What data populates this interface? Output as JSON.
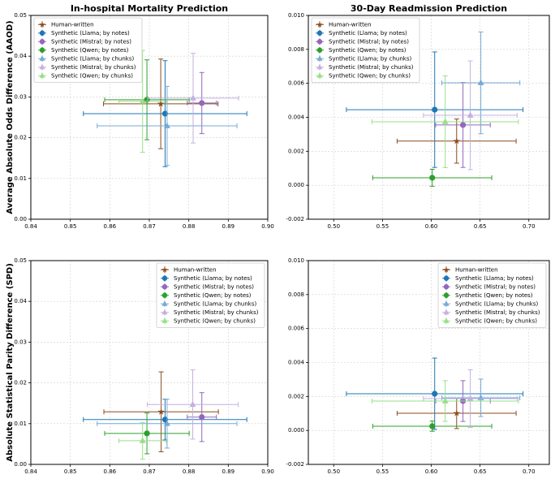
{
  "chart_data": [
    {
      "type": "scatter",
      "title": "In-hospital Mortality Prediction",
      "ylabel": "Average Absolute Odds Difference (AAOD)",
      "xlim": [
        0.84,
        0.9
      ],
      "ylim": [
        0,
        0.05
      ],
      "xticks": [
        0.84,
        0.85,
        0.86,
        0.87,
        0.88,
        0.89,
        {
          "value": 0.9,
          "label": "0.90"
        }
      ],
      "yticks": [
        {
          "value": 0,
          "label": "0.00"
        },
        0.01,
        0.02,
        0.03,
        0.04,
        0.05
      ],
      "grid": true,
      "legend": "upper left",
      "series": [
        {
          "name": "Human-written",
          "color": "#8c4a1e",
          "marker": "star",
          "x": [
            0.8729
          ],
          "values": [
            0.0283
          ],
          "xerr": [
            0.0145
          ],
          "yerr": [
            0.011
          ]
        },
        {
          "name": "Synthetic (Llama; by notes)",
          "color": "#1f77b4",
          "marker": "circle",
          "x": [
            0.874
          ],
          "values": [
            0.0259
          ],
          "xerr": [
            0.0207
          ],
          "yerr": [
            0.013
          ]
        },
        {
          "name": "Synthetic (Mistral; by notes)",
          "color": "#9467bd",
          "marker": "circle",
          "x": [
            0.8833
          ],
          "values": [
            0.0285
          ],
          "xerr": [
            0.0037
          ],
          "yerr": [
            0.0075
          ]
        },
        {
          "name": "Synthetic (Qwen; by notes)",
          "color": "#2ca02c",
          "marker": "circle",
          "x": [
            0.8694
          ],
          "values": [
            0.0293
          ],
          "xerr": [
            0.0107
          ],
          "yerr": [
            0.0098
          ]
        },
        {
          "name": "Synthetic (Llama; by chunks)",
          "color": "#74aad6",
          "marker": "triangle",
          "x": [
            0.8745
          ],
          "values": [
            0.0229
          ],
          "xerr": [
            0.0177
          ],
          "yerr": [
            0.0097
          ]
        },
        {
          "name": "Synthetic (Mistral; by chunks)",
          "color": "#c5b0e0",
          "marker": "triangle",
          "x": [
            0.8811
          ],
          "values": [
            0.0297
          ],
          "xerr": [
            0.0115
          ],
          "yerr": [
            0.011
          ]
        },
        {
          "name": "Synthetic (Qwen; by chunks)",
          "color": "#98df8a",
          "marker": "triangle",
          "x": [
            0.8683
          ],
          "values": [
            0.0289
          ],
          "xerr": [
            0.006
          ],
          "yerr": [
            0.0125
          ]
        }
      ]
    },
    {
      "type": "scatter",
      "title": "30-Day Readmission Prediction",
      "xlim": [
        0.474,
        0.721
      ],
      "ylim": [
        -0.002,
        0.01
      ],
      "xticks": [
        {
          "value": 0.5,
          "label": "0.50"
        },
        0.55,
        {
          "value": 0.6,
          "label": "0.60"
        },
        0.65,
        {
          "value": 0.7,
          "label": "0.70"
        }
      ],
      "yticks": [
        -0.002,
        {
          "value": 0,
          "label": "0.000"
        },
        0.002,
        0.004,
        0.006,
        0.008,
        {
          "value": 0.01,
          "label": "0.010"
        }
      ],
      "grid": true,
      "legend": "upper left",
      "series": [
        {
          "name": "Human-written",
          "color": "#8c4a1e",
          "marker": "star",
          "x": [
            0.626
          ],
          "values": [
            0.0026
          ],
          "xerr": [
            0.061
          ],
          "yerr": [
            0.0013
          ]
        },
        {
          "name": "Synthetic (Llama; by notes)",
          "color": "#1f77b4",
          "marker": "circle",
          "x": [
            0.6035
          ],
          "values": [
            0.00445
          ],
          "xerr": [
            0.0905
          ],
          "yerr": [
            0.0034
          ]
        },
        {
          "name": "Synthetic (Mistral; by notes)",
          "color": "#9467bd",
          "marker": "circle",
          "x": [
            0.6325
          ],
          "values": [
            0.00355
          ],
          "xerr": [
            0.028
          ],
          "yerr": [
            0.0025
          ]
        },
        {
          "name": "Synthetic (Qwen; by notes)",
          "color": "#2ca02c",
          "marker": "circle",
          "x": [
            0.601
          ],
          "values": [
            0.00044
          ],
          "xerr": [
            0.061
          ],
          "yerr": [
            0.0005
          ]
        },
        {
          "name": "Synthetic (Llama; by chunks)",
          "color": "#74aad6",
          "marker": "triangle",
          "x": [
            0.6508
          ],
          "values": [
            0.00603
          ],
          "xerr": [
            0.04
          ],
          "yerr": [
            0.003
          ]
        },
        {
          "name": "Synthetic (Mistral; by chunks)",
          "color": "#c5b0e0",
          "marker": "triangle",
          "x": [
            0.64
          ],
          "values": [
            0.00412
          ],
          "xerr": [
            0.048
          ],
          "yerr": [
            0.0032
          ]
        },
        {
          "name": "Synthetic (Qwen; by chunks)",
          "color": "#98df8a",
          "marker": "triangle",
          "x": [
            0.6143
          ],
          "values": [
            0.00374
          ],
          "xerr": [
            0.075
          ],
          "yerr": [
            0.0027
          ]
        }
      ]
    },
    {
      "type": "scatter",
      "ylabel": "Absolute Statistical Parity Difference (SPD)",
      "xlim": [
        0.84,
        0.9
      ],
      "ylim": [
        0,
        0.05
      ],
      "xticks": [
        0.84,
        0.85,
        0.86,
        0.87,
        0.88,
        0.89,
        {
          "value": 0.9,
          "label": "0.90"
        }
      ],
      "yticks": [
        {
          "value": 0,
          "label": "0.00"
        },
        0.01,
        0.02,
        0.03,
        0.04,
        0.05
      ],
      "grid": true,
      "legend": "upper right",
      "series": [
        {
          "name": "Human-written",
          "color": "#8c4a1e",
          "marker": "star",
          "x": [
            0.873
          ],
          "values": [
            0.0129
          ],
          "xerr": [
            0.0145
          ],
          "yerr": [
            0.0098
          ]
        },
        {
          "name": "Synthetic (Llama; by notes)",
          "color": "#1f77b4",
          "marker": "circle",
          "x": [
            0.874
          ],
          "values": [
            0.011
          ],
          "xerr": [
            0.0207
          ],
          "yerr": [
            0.005
          ]
        },
        {
          "name": "Synthetic (Mistral; by notes)",
          "color": "#9467bd",
          "marker": "circle",
          "x": [
            0.8833
          ],
          "values": [
            0.0116
          ],
          "xerr": [
            0.0037
          ],
          "yerr": [
            0.006
          ]
        },
        {
          "name": "Synthetic (Qwen; by notes)",
          "color": "#2ca02c",
          "marker": "circle",
          "x": [
            0.8694
          ],
          "values": [
            0.0076
          ],
          "xerr": [
            0.0107
          ],
          "yerr": [
            0.005
          ]
        },
        {
          "name": "Synthetic (Llama; by chunks)",
          "color": "#74aad6",
          "marker": "triangle",
          "x": [
            0.8745
          ],
          "values": [
            0.01
          ],
          "xerr": [
            0.0177
          ],
          "yerr": [
            0.006
          ]
        },
        {
          "name": "Synthetic (Mistral; by chunks)",
          "color": "#c5b0e0",
          "marker": "triangle",
          "x": [
            0.881
          ],
          "values": [
            0.0147
          ],
          "xerr": [
            0.0115
          ],
          "yerr": [
            0.0085
          ]
        },
        {
          "name": "Synthetic (Qwen; by chunks)",
          "color": "#98df8a",
          "marker": "triangle",
          "x": [
            0.8683
          ],
          "values": [
            0.0058
          ],
          "xerr": [
            0.006
          ],
          "yerr": [
            0.0045
          ]
        }
      ]
    },
    {
      "type": "scatter",
      "xlim": [
        0.474,
        0.721
      ],
      "ylim": [
        -0.002,
        0.01
      ],
      "xticks": [
        {
          "value": 0.5,
          "label": "0.50"
        },
        0.55,
        {
          "value": 0.6,
          "label": "0.60"
        },
        0.65,
        {
          "value": 0.7,
          "label": "0.70"
        }
      ],
      "yticks": [
        -0.002,
        {
          "value": 0,
          "label": "0.000"
        },
        0.002,
        0.004,
        0.006,
        0.008,
        {
          "value": 0.01,
          "label": "0.010"
        }
      ],
      "grid": true,
      "legend": "upper right",
      "series": [
        {
          "name": "Human-written",
          "color": "#8c4a1e",
          "marker": "star",
          "x": [
            0.626
          ],
          "values": [
            0.00101
          ],
          "xerr": [
            0.061
          ],
          "yerr": [
            0.0009
          ]
        },
        {
          "name": "Synthetic (Llama; by notes)",
          "color": "#1f77b4",
          "marker": "circle",
          "x": [
            0.6035
          ],
          "values": [
            0.00216
          ],
          "xerr": [
            0.0905
          ],
          "yerr": [
            0.0021
          ]
        },
        {
          "name": "Synthetic (Mistral; by notes)",
          "color": "#9467bd",
          "marker": "circle",
          "x": [
            0.6325
          ],
          "values": [
            0.00173
          ],
          "xerr": [
            0.028
          ],
          "yerr": [
            0.0012
          ]
        },
        {
          "name": "Synthetic (Qwen; by notes)",
          "color": "#2ca02c",
          "marker": "circle",
          "x": [
            0.601
          ],
          "values": [
            0.00025
          ],
          "xerr": [
            0.061
          ],
          "yerr": [
            0.0003
          ]
        },
        {
          "name": "Synthetic (Llama; by chunks)",
          "color": "#74aad6",
          "marker": "triangle",
          "x": [
            0.6508
          ],
          "values": [
            0.00192
          ],
          "xerr": [
            0.04
          ],
          "yerr": [
            0.0011
          ]
        },
        {
          "name": "Synthetic (Mistral; by chunks)",
          "color": "#c5b0e0",
          "marker": "triangle",
          "x": [
            0.64
          ],
          "values": [
            0.00187
          ],
          "xerr": [
            0.048
          ],
          "yerr": [
            0.0017
          ]
        },
        {
          "name": "Synthetic (Qwen; by chunks)",
          "color": "#98df8a",
          "marker": "triangle",
          "x": [
            0.6143
          ],
          "values": [
            0.00173
          ],
          "xerr": [
            0.075
          ],
          "yerr": [
            0.0012
          ]
        }
      ]
    }
  ]
}
